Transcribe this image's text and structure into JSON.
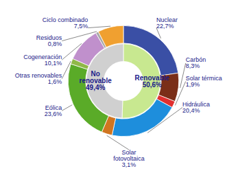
{
  "chart_data": {
    "type": "donut",
    "data_labels": true,
    "series": [
      {
        "categories": [
          "Nuclear",
          "Carbón",
          "Solar térmica",
          "Hidráulica",
          "Solar\nfotovoltaica",
          "Eólica",
          "Otras renovables",
          "Cogeneración",
          "Residuos",
          "Ciclo combinado"
        ],
        "values": [
          22.7,
          8.3,
          1.9,
          20.4,
          3.1,
          23.6,
          1.6,
          10.1,
          0.8,
          7.5
        ],
        "value_labels": [
          "22,7%",
          "8,3%",
          "1,9%",
          "20,4%",
          "3,1%",
          "23,6%",
          "1,6%",
          "10,1%",
          "0,8%",
          "7,5%"
        ],
        "colors": [
          "#3a4fa5",
          "#7a2e18",
          "#e03030",
          "#1e8edc",
          "#d07520",
          "#5aab28",
          "#90b848",
          "#c090cc",
          "#a8a8a8",
          "#f0a030"
        ]
      },
      {
        "categories": [
          "Renovable",
          "No\nrenovable"
        ],
        "values": [
          50.6,
          49.4
        ],
        "value_labels": [
          "50,6%",
          "49,4%"
        ],
        "colors": [
          "#c8e890",
          "#d0d0d0"
        ]
      }
    ]
  }
}
